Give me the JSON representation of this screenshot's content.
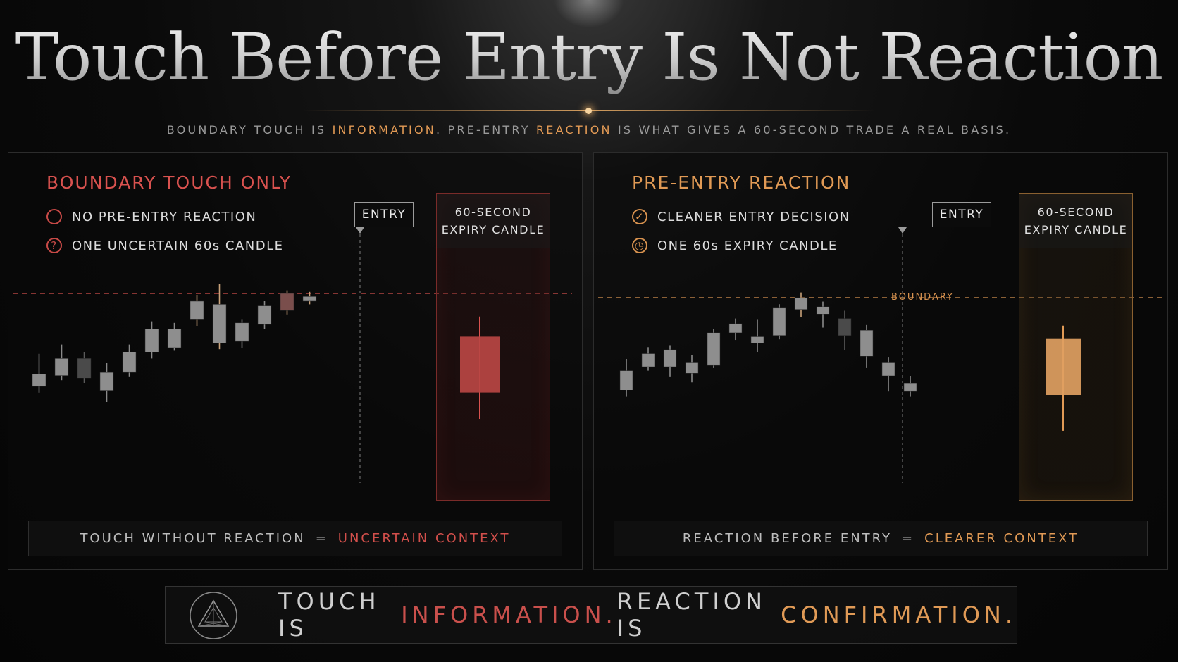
{
  "header": {
    "title": "Touch Before Entry Is Not Reaction",
    "subtitle": {
      "part1": "BOUNDARY TOUCH IS ",
      "hl1": "INFORMATION",
      "part2": ". PRE-ENTRY ",
      "hl2": "REACTION",
      "part3": " IS WHAT GIVES A 60-SECOND TRADE A REAL BASIS."
    }
  },
  "colors": {
    "red": "#d9524f",
    "amber": "#e19a55",
    "background": "#0a0a0a"
  },
  "left_panel": {
    "heading": "BOUNDARY TOUCH ONLY",
    "points": [
      {
        "icon": "empty-circle-icon",
        "text": "NO PRE-ENTRY REACTION"
      },
      {
        "icon": "question-circle-icon",
        "glyph": "?",
        "text": "ONE UNCERTAIN 60s CANDLE"
      }
    ],
    "entry_label": "ENTRY",
    "expiry_label_line1": "60-SECOND",
    "expiry_label_line2": "EXPIRY CANDLE",
    "formula": {
      "lhs": "TOUCH WITHOUT REACTION",
      "eq": "=",
      "rhs": "UNCERTAIN CONTEXT"
    }
  },
  "right_panel": {
    "heading": "PRE-ENTRY REACTION",
    "points": [
      {
        "icon": "check-circle-icon",
        "glyph": "✓",
        "text": "CLEANER ENTRY DECISION"
      },
      {
        "icon": "clock-icon",
        "glyph": "◷",
        "text": "ONE 60s EXPIRY CANDLE"
      }
    ],
    "entry_label": "ENTRY",
    "boundary_label": "BOUNDARY",
    "expiry_label_line1": "60-SECOND",
    "expiry_label_line2": "EXPIRY CANDLE",
    "formula": {
      "lhs": "REACTION BEFORE ENTRY",
      "eq": "=",
      "rhs": "CLEARER CONTEXT"
    }
  },
  "chart_data": [
    {
      "type": "candlestick",
      "series": [
        {
          "name": "",
          "ohlc": [
            [
              40,
              48,
              36,
              61
            ],
            [
              47,
              58,
              44,
              67
            ],
            [
              58,
              45,
              42,
              62
            ],
            [
              37,
              49,
              30,
              55
            ],
            [
              49,
              62,
              46,
              67
            ],
            [
              62,
              77,
              58,
              82
            ],
            [
              65,
              77,
              63,
              81
            ],
            [
              83,
              95,
              79,
              99
            ],
            [
              68,
              93,
              64,
              106
            ],
            [
              69,
              81,
              65,
              83
            ],
            [
              80,
              92,
              77,
              95
            ],
            [
              89,
              100,
              86,
              102
            ],
            [
              95,
              98,
              93,
              101
            ]
          ]
        }
      ],
      "boundary": 100,
      "expiry_candle": [
        52,
        88,
        35,
        101
      ]
    },
    {
      "type": "candlestick",
      "series": [
        {
          "name": "",
          "ohlc": [
            [
              49,
              64,
              44,
              73
            ],
            [
              67,
              77,
              64,
              82
            ],
            [
              67,
              80,
              59,
              83
            ],
            [
              62,
              70,
              55,
              76
            ],
            [
              68,
              93,
              66,
              96
            ],
            [
              93,
              100,
              87,
              104
            ],
            [
              85,
              90,
              78,
              103
            ],
            [
              91,
              112,
              88,
              115
            ],
            [
              111,
              120,
              105,
              124
            ],
            [
              107,
              113,
              97,
              117
            ],
            [
              104,
              91,
              80,
              110
            ],
            [
              75,
              95,
              66,
              99
            ],
            [
              60,
              70,
              48,
              74
            ],
            [
              48,
              54,
              44,
              60
            ]
          ]
        }
      ],
      "boundary": 120,
      "expiry_candle": [
        55,
        93,
        31,
        102
      ]
    }
  ],
  "footer": {
    "logo": "prism-triangle-icon",
    "t1": "TOUCH IS ",
    "red": "INFORMATION.",
    "t2": " REACTION IS ",
    "amber": "CONFIRMATION."
  }
}
